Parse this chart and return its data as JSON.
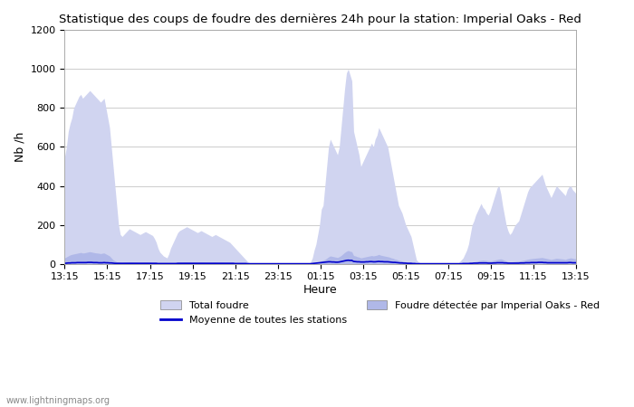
{
  "title": "Statistique des coups de foudre des dernières 24h pour la station: Imperial Oaks - Red",
  "ylabel": "Nb /h",
  "xlabel": "Heure",
  "ylim": [
    0,
    1200
  ],
  "yticks": [
    0,
    200,
    400,
    600,
    800,
    1000,
    1200
  ],
  "x_labels": [
    "13:15",
    "15:15",
    "17:15",
    "19:15",
    "21:15",
    "23:15",
    "01:15",
    "03:15",
    "05:15",
    "07:15",
    "09:15",
    "11:15",
    "13:15"
  ],
  "fill_color_light": "#d0d4f0",
  "fill_color_dark": "#b0b8e8",
  "line_color": "#0000cc",
  "background_color": "#ffffff",
  "grid_color": "#cccccc",
  "watermark": "www.lightningmaps.org",
  "total_foudre_label": "Total foudre",
  "station_foudre_label": "Foudre détectée par Imperial Oaks - Red",
  "moyenne_label": "Moyenne de toutes les stations",
  "total_values": [
    550,
    600,
    680,
    720,
    750,
    800,
    820,
    840,
    860,
    870,
    850,
    860,
    870,
    880,
    890,
    880,
    870,
    860,
    850,
    840,
    830,
    840,
    850,
    800,
    750,
    700,
    600,
    500,
    400,
    300,
    200,
    150,
    140,
    150,
    160,
    170,
    180,
    175,
    170,
    165,
    160,
    155,
    150,
    155,
    160,
    165,
    160,
    155,
    150,
    145,
    130,
    110,
    80,
    60,
    50,
    40,
    35,
    30,
    50,
    80,
    100,
    120,
    140,
    160,
    170,
    175,
    180,
    185,
    190,
    185,
    180,
    175,
    170,
    165,
    160,
    165,
    170,
    165,
    160,
    155,
    150,
    145,
    140,
    145,
    150,
    145,
    140,
    135,
    130,
    125,
    120,
    115,
    110,
    100,
    90,
    80,
    70,
    60,
    50,
    40,
    30,
    20,
    10,
    5,
    2,
    1,
    0,
    0,
    0,
    0,
    0,
    0,
    0,
    0,
    0,
    0,
    0,
    0,
    0,
    0,
    0,
    0,
    0,
    0,
    0,
    0,
    0,
    0,
    0,
    0,
    0,
    0,
    0,
    0,
    0,
    0,
    0,
    10,
    30,
    70,
    100,
    150,
    200,
    280,
    300,
    400,
    500,
    600,
    640,
    620,
    600,
    580,
    560,
    600,
    700,
    800,
    900,
    980,
    1000,
    970,
    940,
    680,
    640,
    600,
    560,
    500,
    520,
    540,
    560,
    580,
    600,
    620,
    600,
    640,
    660,
    700,
    680,
    660,
    640,
    620,
    600,
    550,
    500,
    450,
    400,
    350,
    300,
    280,
    260,
    230,
    200,
    180,
    160,
    140,
    100,
    60,
    20,
    10,
    5,
    2,
    1,
    0,
    0,
    0,
    0,
    0,
    0,
    0,
    0,
    0,
    0,
    0,
    0,
    0,
    0,
    0,
    0,
    0,
    0,
    0,
    10,
    20,
    30,
    50,
    70,
    100,
    150,
    200,
    220,
    250,
    270,
    290,
    310,
    290,
    280,
    260,
    250,
    270,
    300,
    330,
    360,
    390,
    400,
    360,
    300,
    250,
    200,
    170,
    150,
    160,
    180,
    200,
    210,
    220,
    250,
    280,
    310,
    340,
    370,
    390,
    400,
    410,
    420,
    430,
    440,
    450,
    460,
    430,
    400,
    380,
    360,
    340,
    360,
    380,
    400,
    390,
    380,
    370,
    360,
    350,
    380,
    395,
    400,
    380,
    370,
    360
  ],
  "station_values": [
    30,
    35,
    40,
    45,
    48,
    50,
    52,
    54,
    56,
    58,
    55,
    56,
    58,
    60,
    62,
    60,
    58,
    56,
    55,
    54,
    52,
    54,
    55,
    50,
    45,
    40,
    30,
    20,
    15,
    10,
    8,
    6,
    5,
    6,
    7,
    8,
    9,
    8,
    8,
    7,
    7,
    6,
    6,
    6,
    7,
    7,
    7,
    6,
    6,
    5,
    5,
    4,
    3,
    2,
    2,
    1,
    1,
    1,
    2,
    3,
    4,
    5,
    6,
    7,
    8,
    8,
    9,
    9,
    9,
    9,
    9,
    8,
    8,
    8,
    7,
    8,
    8,
    8,
    7,
    7,
    7,
    6,
    6,
    7,
    7,
    6,
    6,
    6,
    6,
    5,
    5,
    5,
    5,
    4,
    4,
    3,
    3,
    2,
    2,
    2,
    1,
    1,
    0,
    0,
    0,
    0,
    0,
    0,
    0,
    0,
    0,
    0,
    0,
    0,
    0,
    0,
    0,
    0,
    0,
    0,
    0,
    0,
    0,
    0,
    0,
    0,
    0,
    0,
    0,
    0,
    0,
    0,
    0,
    0,
    0,
    0,
    0,
    0,
    1,
    3,
    5,
    8,
    10,
    15,
    18,
    22,
    28,
    35,
    40,
    38,
    36,
    34,
    32,
    36,
    42,
    50,
    58,
    64,
    68,
    64,
    62,
    42,
    40,
    36,
    34,
    30,
    32,
    34,
    36,
    38,
    40,
    42,
    40,
    42,
    44,
    48,
    44,
    42,
    40,
    38,
    36,
    34,
    30,
    28,
    24,
    22,
    18,
    16,
    14,
    12,
    10,
    8,
    7,
    6,
    5,
    3,
    1,
    0,
    0,
    0,
    0,
    0,
    0,
    0,
    0,
    0,
    0,
    0,
    0,
    0,
    0,
    0,
    0,
    0,
    0,
    0,
    0,
    0,
    0,
    0,
    0,
    1,
    2,
    3,
    4,
    5,
    6,
    8,
    10,
    12,
    14,
    16,
    18,
    19,
    18,
    17,
    16,
    15,
    16,
    18,
    20,
    22,
    24,
    25,
    22,
    18,
    14,
    11,
    10,
    10,
    11,
    12,
    13,
    14,
    15,
    17,
    19,
    21,
    23,
    25,
    26,
    27,
    28,
    29,
    30,
    31,
    32,
    30,
    28,
    26,
    24,
    22,
    24,
    26,
    28,
    27,
    26,
    25,
    24,
    22,
    26,
    28,
    30,
    28,
    26,
    25
  ],
  "moyenne_values": [
    2,
    3,
    4,
    4,
    5,
    5,
    5,
    6,
    6,
    6,
    6,
    6,
    6,
    7,
    7,
    7,
    6,
    6,
    6,
    5,
    5,
    5,
    6,
    5,
    5,
    4,
    4,
    3,
    2,
    2,
    2,
    2,
    2,
    2,
    2,
    2,
    2,
    2,
    2,
    2,
    2,
    2,
    2,
    2,
    2,
    2,
    2,
    2,
    2,
    2,
    2,
    2,
    1,
    1,
    1,
    1,
    1,
    1,
    1,
    1,
    1,
    1,
    1,
    2,
    2,
    2,
    2,
    2,
    2,
    2,
    2,
    2,
    2,
    2,
    2,
    2,
    2,
    2,
    2,
    2,
    2,
    2,
    2,
    2,
    2,
    2,
    2,
    2,
    2,
    2,
    2,
    2,
    2,
    2,
    2,
    1,
    1,
    1,
    1,
    1,
    1,
    1,
    0,
    0,
    0,
    0,
    0,
    0,
    0,
    0,
    0,
    0,
    0,
    0,
    0,
    0,
    0,
    0,
    0,
    0,
    0,
    0,
    0,
    0,
    0,
    0,
    0,
    0,
    0,
    0,
    0,
    0,
    0,
    0,
    0,
    0,
    0,
    0,
    1,
    2,
    3,
    4,
    5,
    6,
    7,
    8,
    9,
    10,
    10,
    9,
    9,
    8,
    8,
    9,
    11,
    13,
    15,
    17,
    18,
    17,
    17,
    12,
    11,
    10,
    10,
    9,
    9,
    9,
    10,
    10,
    11,
    11,
    10,
    10,
    11,
    12,
    11,
    11,
    10,
    10,
    10,
    9,
    8,
    7,
    7,
    6,
    5,
    4,
    4,
    3,
    3,
    2,
    2,
    2,
    1,
    1,
    0,
    0,
    0,
    0,
    0,
    0,
    0,
    0,
    0,
    0,
    0,
    0,
    0,
    0,
    0,
    0,
    0,
    0,
    0,
    0,
    0,
    0,
    0,
    0,
    0,
    0,
    1,
    1,
    1,
    1,
    2,
    2,
    3,
    3,
    3,
    4,
    4,
    4,
    4,
    4,
    3,
    3,
    3,
    4,
    4,
    5,
    5,
    5,
    5,
    4,
    4,
    3,
    3,
    3,
    3,
    3,
    3,
    3,
    4,
    4,
    4,
    5,
    5,
    5,
    6,
    6,
    6,
    6,
    7,
    7,
    7,
    6,
    6,
    5,
    5,
    5,
    5,
    5,
    5,
    5,
    5,
    5,
    5,
    5,
    5,
    6,
    6,
    5,
    5,
    5
  ]
}
